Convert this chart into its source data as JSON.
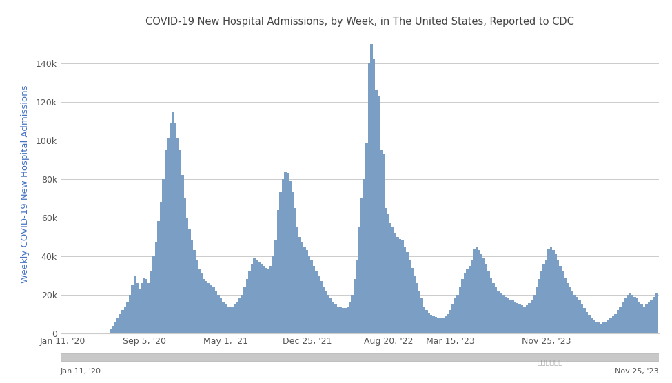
{
  "title": "COVID-19 New Hospital Admissions, by Week, in The United States, Reported to CDC",
  "ylabel": "Weekly COVID-19 New Hospital Admissions",
  "xlabel_left": "Jan 11, '20",
  "xlabel_right": "Nov 25, '23",
  "bar_color": "#7b9fc4",
  "background_color": "#ffffff",
  "grid_color": "#cccccc",
  "title_color": "#444444",
  "axis_label_color": "#4472C4",
  "tick_label_color": "#555555",
  "ylim": [
    0,
    155000
  ],
  "yticks": [
    0,
    20000,
    40000,
    60000,
    80000,
    100000,
    120000,
    140000
  ],
  "xtick_labels": [
    "Jan 11, '20",
    "Sep 5, '20",
    "May 1, '21",
    "Dec 25, '21",
    "Aug 20, '22",
    "Mar 15, '23",
    "Nov 25, '23"
  ],
  "xtick_positions": [
    0,
    34,
    68,
    102,
    136,
    162,
    202
  ],
  "values": [
    0,
    0,
    0,
    0,
    0,
    0,
    0,
    0,
    0,
    0,
    0,
    0,
    0,
    0,
    0,
    0,
    0,
    0,
    0,
    0,
    2000,
    4000,
    6000,
    8000,
    10000,
    12000,
    14000,
    16000,
    20000,
    25000,
    30000,
    26000,
    23000,
    26000,
    29000,
    28000,
    26000,
    32000,
    40000,
    47000,
    58000,
    68000,
    80000,
    95000,
    101000,
    109000,
    115000,
    109000,
    101000,
    95000,
    82000,
    70000,
    60000,
    54000,
    48000,
    43000,
    38000,
    33000,
    31000,
    28000,
    27000,
    26000,
    25000,
    24000,
    22000,
    20000,
    18000,
    16000,
    15000,
    14000,
    13500,
    14000,
    15000,
    16000,
    18000,
    20000,
    24000,
    28000,
    32000,
    36000,
    39000,
    38000,
    37000,
    36000,
    35000,
    34000,
    33000,
    35000,
    40000,
    48000,
    64000,
    73000,
    80000,
    84000,
    83000,
    79000,
    73000,
    65000,
    55000,
    50000,
    47000,
    45000,
    43000,
    40000,
    38000,
    35000,
    32000,
    30000,
    27000,
    24000,
    22000,
    20000,
    18000,
    16000,
    15000,
    14000,
    13500,
    13000,
    13000,
    14000,
    16000,
    20000,
    28000,
    38000,
    55000,
    70000,
    80000,
    99000,
    140000,
    150000,
    142000,
    126000,
    123000,
    95000,
    93000,
    65000,
    62000,
    57000,
    55000,
    52000,
    50000,
    49000,
    48000,
    45000,
    42000,
    38000,
    34000,
    30000,
    26000,
    22000,
    18000,
    14000,
    12000,
    10500,
    9500,
    9000,
    8500,
    8000,
    8200,
    8000,
    9000,
    10000,
    12000,
    15000,
    18000,
    20000,
    24000,
    28000,
    31000,
    33000,
    35000,
    38000,
    44000,
    45000,
    43000,
    41000,
    39000,
    36000,
    32000,
    29000,
    26000,
    24000,
    22000,
    21000,
    20000,
    19000,
    18000,
    17500,
    17000,
    16500,
    15500,
    15000,
    14500,
    14000,
    14500,
    15500,
    17000,
    20000,
    24000,
    28000,
    32000,
    36000,
    38000,
    44000,
    45000,
    43000,
    41000,
    38000,
    35000,
    32000,
    29000,
    26000,
    24000,
    22000,
    20000,
    19000,
    17000,
    15000,
    13000,
    11000,
    9500,
    8000,
    7000,
    6000,
    5500,
    5000,
    5500,
    6000,
    7000,
    8000,
    9000,
    10000,
    12000,
    14000,
    16000,
    18000,
    20000,
    21000,
    20000,
    19000,
    18000,
    16000,
    15000,
    14000,
    15000,
    16000,
    17000,
    19000,
    21000
  ]
}
